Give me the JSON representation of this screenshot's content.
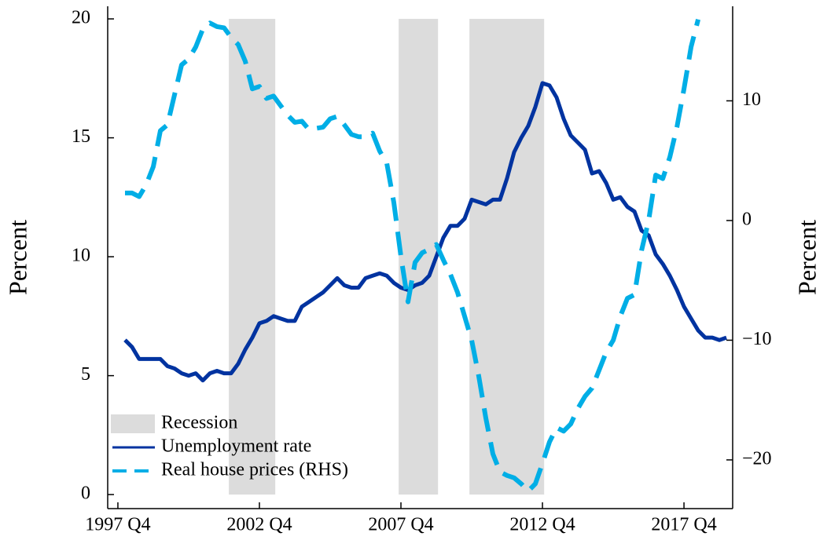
{
  "chart_data": {
    "type": "line",
    "y_label": "Percent",
    "y2_label": "Percent",
    "x": [
      1998,
      1998.25,
      1998.5,
      1998.75,
      1999,
      1999.25,
      1999.5,
      1999.75,
      2000,
      2000.25,
      2000.5,
      2000.75,
      2001,
      2001.25,
      2001.5,
      2001.75,
      2002,
      2002.25,
      2002.5,
      2002.75,
      2003,
      2003.25,
      2003.5,
      2003.75,
      2004,
      2004.25,
      2004.5,
      2004.75,
      2005,
      2005.25,
      2005.5,
      2005.75,
      2006,
      2006.25,
      2006.5,
      2006.75,
      2007,
      2007.25,
      2007.5,
      2007.75,
      2008,
      2008.25,
      2008.5,
      2008.75,
      2009,
      2009.25,
      2009.5,
      2009.75,
      2010,
      2010.25,
      2010.5,
      2010.75,
      2011,
      2011.25,
      2011.5,
      2011.75,
      2012,
      2012.25,
      2012.5,
      2012.75,
      2013,
      2013.25,
      2013.5,
      2013.75,
      2014,
      2014.25,
      2014.5,
      2014.75,
      2015,
      2015.25,
      2015.5,
      2015.75,
      2016,
      2016.25,
      2016.5,
      2016.75,
      2017,
      2017.25,
      2017.5,
      2017.75,
      2018,
      2018.25,
      2018.5,
      2018.75,
      2019,
      2019.25
    ],
    "series": [
      {
        "name": "Unemployment rate",
        "color": "#0033a0",
        "dashed": false,
        "values": [
          6.5,
          6.2,
          5.7,
          5.7,
          5.7,
          5.7,
          5.4,
          5.3,
          5.1,
          5.0,
          5.1,
          4.8,
          5.1,
          5.2,
          5.1,
          5.1,
          5.5,
          6.1,
          6.6,
          7.2,
          7.3,
          7.5,
          7.4,
          7.3,
          7.3,
          7.9,
          8.1,
          8.3,
          8.5,
          8.8,
          9.1,
          8.8,
          8.7,
          8.7,
          9.1,
          9.2,
          9.3,
          9.2,
          8.9,
          8.7,
          8.6,
          8.8,
          8.9,
          9.2,
          10.0,
          10.8,
          11.3,
          11.3,
          11.6,
          12.4,
          12.3,
          12.2,
          12.4,
          12.4,
          13.3,
          14.4,
          15.0,
          15.5,
          16.3,
          17.3,
          17.2,
          16.7,
          15.8,
          15.1,
          14.8,
          14.5,
          13.5,
          13.6,
          13.1,
          12.4,
          12.5,
          12.1,
          11.9,
          11.1,
          10.9,
          10.1,
          9.7,
          9.2,
          8.6,
          7.9,
          7.4,
          6.9,
          6.6,
          6.6,
          6.5,
          6.6
        ]
      },
      {
        "name": "Real house prices (RHS)",
        "color": "#00aee6",
        "dashed": true,
        "axis": "y2",
        "values": [
          2.3,
          2.3,
          2.0,
          3.0,
          4.5,
          7.5,
          8.0,
          10.5,
          13.0,
          13.5,
          14.5,
          16.0,
          16.5,
          16.2,
          16.1,
          15.3,
          14.7,
          13.3,
          11.0,
          11.2,
          10.2,
          10.4,
          9.6,
          8.8,
          8.2,
          8.3,
          7.6,
          7.7,
          7.8,
          8.5,
          8.7,
          8.0,
          7.2,
          7.0,
          7.0,
          7.3,
          5.8,
          4.8,
          1.5,
          -3.0,
          -6.8,
          -3.5,
          -2.7,
          -2.4,
          -2.0,
          -3.3,
          -4.5,
          -6.0,
          -8.0,
          -10.0,
          -13.0,
          -16.5,
          -19.5,
          -21.0,
          -21.3,
          -21.5,
          -22.0,
          -22.6,
          -22.0,
          -20.3,
          -18.5,
          -17.3,
          -17.6,
          -17.0,
          -15.7,
          -14.7,
          -14.0,
          -12.5,
          -11.0,
          -10.0,
          -8.0,
          -6.5,
          -6.2,
          -2.5,
          0.0,
          3.8,
          3.5,
          5.3,
          7.8,
          11.0,
          14.5,
          16.8,
          null,
          null,
          null,
          null
        ]
      }
    ],
    "shaded": {
      "name": "Recession",
      "color": "#dcdcdc",
      "ranges": [
        [
          2001.67,
          2003.31
        ],
        [
          2007.67,
          2009.06
        ],
        [
          2010.17,
          2012.81
        ]
      ]
    },
    "xlim": [
      1997.39,
      2019.47
    ],
    "xticks": [
      {
        "value": 1997.75,
        "label": "1997 Q4"
      },
      {
        "value": 2002.75,
        "label": "2002 Q4"
      },
      {
        "value": 2007.75,
        "label": "2007 Q4"
      },
      {
        "value": 2012.75,
        "label": "2012 Q4"
      },
      {
        "value": 2017.75,
        "label": "2017 Q4"
      }
    ],
    "ylim": [
      -0.59,
      20.53
    ],
    "yticks": [
      0,
      5,
      10,
      15,
      20
    ],
    "y2lim": [
      -24.07,
      17.9
    ],
    "y2ticks": [
      {
        "value": -20,
        "label": "−20"
      },
      {
        "value": -10,
        "label": "−10"
      },
      0,
      10
    ],
    "legend": "lower left"
  }
}
